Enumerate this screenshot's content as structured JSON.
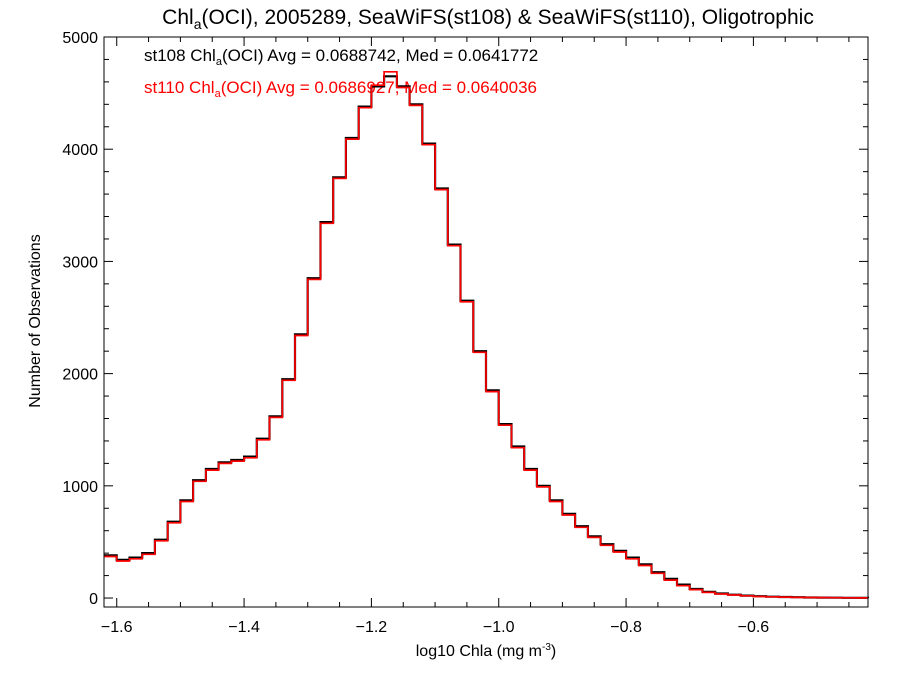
{
  "chart_data": {
    "type": "line",
    "title": {
      "pre": "Chl",
      "sub": "a",
      "post": "(OCI), 2005289, SeaWiFS(st108) & SeaWiFS(st110), Oligotrophic"
    },
    "xlabel": {
      "pre": "log10 Chla (mg m",
      "sup": "-3",
      "post": ")"
    },
    "ylabel": "Number of Observations",
    "xlim": [
      -1.62,
      -0.42
    ],
    "ylim": [
      -80,
      5000
    ],
    "xticks": [
      -1.6,
      -1.4,
      -1.2,
      -1.0,
      -0.8,
      -0.6
    ],
    "xtick_labels": [
      "−1.6",
      "−1.4",
      "−1.2",
      "−1.0",
      "−0.8",
      "−0.6"
    ],
    "yticks": [
      0,
      1000,
      2000,
      3000,
      4000,
      5000
    ],
    "ytick_labels": [
      "0",
      "1000",
      "2000",
      "3000",
      "4000",
      "5000"
    ],
    "annotations": [
      {
        "pre": "st108 Chl",
        "sub": "a",
        "post": "(OCI) Avg = 0.0688742, Med = 0.0641772",
        "color": "#000000"
      },
      {
        "pre": "st110 Chl",
        "sub": "a",
        "post": "(OCI) Avg = 0.0686927, Med = 0.0640036",
        "color": "#ff0000"
      }
    ],
    "series": [
      {
        "name": "st108",
        "color": "#000000",
        "x": [
          -1.62,
          -1.6,
          -1.58,
          -1.56,
          -1.54,
          -1.52,
          -1.5,
          -1.48,
          -1.46,
          -1.44,
          -1.42,
          -1.4,
          -1.38,
          -1.36,
          -1.34,
          -1.32,
          -1.3,
          -1.28,
          -1.26,
          -1.24,
          -1.22,
          -1.2,
          -1.18,
          -1.16,
          -1.14,
          -1.12,
          -1.1,
          -1.08,
          -1.06,
          -1.04,
          -1.02,
          -1.0,
          -0.98,
          -0.96,
          -0.94,
          -0.92,
          -0.9,
          -0.88,
          -0.86,
          -0.84,
          -0.82,
          -0.8,
          -0.78,
          -0.76,
          -0.74,
          -0.72,
          -0.7,
          -0.68,
          -0.66,
          -0.64,
          -0.62,
          -0.6,
          -0.58,
          -0.56,
          -0.54,
          -0.52,
          -0.5,
          -0.48,
          -0.46,
          -0.44,
          -0.42
        ],
        "y": [
          380,
          340,
          360,
          400,
          520,
          680,
          870,
          1050,
          1150,
          1210,
          1230,
          1260,
          1420,
          1620,
          1950,
          2350,
          2850,
          3350,
          3750,
          4100,
          4380,
          4560,
          4650,
          4560,
          4400,
          4050,
          3650,
          3150,
          2650,
          2200,
          1850,
          1550,
          1350,
          1150,
          1000,
          870,
          750,
          640,
          550,
          480,
          420,
          360,
          300,
          230,
          170,
          120,
          80,
          55,
          40,
          30,
          22,
          16,
          12,
          9,
          7,
          5,
          4,
          3,
          2,
          2,
          1
        ]
      },
      {
        "name": "st110",
        "color": "#ff0000",
        "x": [
          -1.62,
          -1.6,
          -1.58,
          -1.56,
          -1.54,
          -1.52,
          -1.5,
          -1.48,
          -1.46,
          -1.44,
          -1.42,
          -1.4,
          -1.38,
          -1.36,
          -1.34,
          -1.32,
          -1.3,
          -1.28,
          -1.26,
          -1.24,
          -1.22,
          -1.2,
          -1.18,
          -1.16,
          -1.14,
          -1.12,
          -1.1,
          -1.08,
          -1.06,
          -1.04,
          -1.02,
          -1.0,
          -0.98,
          -0.96,
          -0.94,
          -0.92,
          -0.9,
          -0.88,
          -0.86,
          -0.84,
          -0.82,
          -0.8,
          -0.78,
          -0.76,
          -0.74,
          -0.72,
          -0.7,
          -0.68,
          -0.66,
          -0.64,
          -0.62,
          -0.6,
          -0.58,
          -0.56,
          -0.54,
          -0.52,
          -0.5,
          -0.48,
          -0.46,
          -0.44,
          -0.42
        ],
        "y": [
          370,
          330,
          350,
          390,
          510,
          670,
          860,
          1040,
          1140,
          1200,
          1220,
          1250,
          1410,
          1610,
          1940,
          2340,
          2840,
          3340,
          3740,
          4090,
          4370,
          4570,
          4690,
          4550,
          4390,
          4040,
          3640,
          3140,
          2640,
          2190,
          1840,
          1540,
          1340,
          1140,
          990,
          860,
          740,
          630,
          540,
          470,
          410,
          350,
          290,
          220,
          160,
          110,
          75,
          50,
          36,
          27,
          20,
          14,
          11,
          8,
          6,
          5,
          4,
          3,
          2,
          1,
          1
        ]
      }
    ]
  }
}
